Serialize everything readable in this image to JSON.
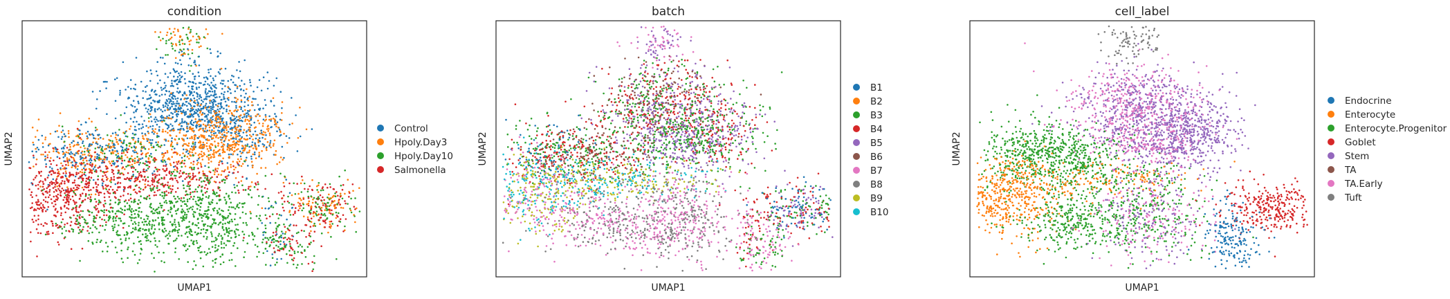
{
  "chart_data": [
    {
      "type": "scatter",
      "title": "condition",
      "xlabel": "UMAP1",
      "ylabel": "UMAP2",
      "grid": false,
      "legend_placement": "right",
      "categories": [
        {
          "name": "Control",
          "color": "#1f77b4"
        },
        {
          "name": "Hpoly.Day3",
          "color": "#ff7f0e"
        },
        {
          "name": "Hpoly.Day10",
          "color": "#2ca02c"
        },
        {
          "name": "Salmonella",
          "color": "#d62728"
        }
      ]
    },
    {
      "type": "scatter",
      "title": "batch",
      "xlabel": "UMAP1",
      "ylabel": "UMAP2",
      "grid": false,
      "legend_placement": "right",
      "categories": [
        {
          "name": "B1",
          "color": "#1f77b4"
        },
        {
          "name": "B2",
          "color": "#ff7f0e"
        },
        {
          "name": "B3",
          "color": "#2ca02c"
        },
        {
          "name": "B4",
          "color": "#d62728"
        },
        {
          "name": "B5",
          "color": "#9467bd"
        },
        {
          "name": "B6",
          "color": "#8c564b"
        },
        {
          "name": "B7",
          "color": "#e377c2"
        },
        {
          "name": "B8",
          "color": "#7f7f7f"
        },
        {
          "name": "B9",
          "color": "#bcbd22"
        },
        {
          "name": "B10",
          "color": "#17becf"
        }
      ]
    },
    {
      "type": "scatter",
      "title": "cell_label",
      "xlabel": "UMAP1",
      "ylabel": "UMAP2",
      "grid": false,
      "legend_placement": "right",
      "categories": [
        {
          "name": "Endocrine",
          "color": "#1f77b4"
        },
        {
          "name": "Enterocyte",
          "color": "#ff7f0e"
        },
        {
          "name": "Enterocyte.Progenitor",
          "color": "#2ca02c"
        },
        {
          "name": "Goblet",
          "color": "#d62728"
        },
        {
          "name": "Stem",
          "color": "#9467bd"
        },
        {
          "name": "TA",
          "color": "#8c564b"
        },
        {
          "name": "TA.Early",
          "color": "#e377c2"
        },
        {
          "name": "Tuft",
          "color": "#7f7f7f"
        }
      ]
    }
  ]
}
